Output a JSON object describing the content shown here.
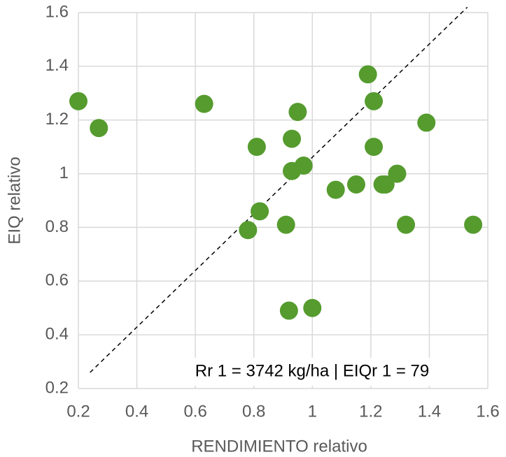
{
  "chart_data": {
    "type": "scatter",
    "x_label": "RENDIMIENTO relativo",
    "y_label": "EIQ relativo",
    "annotation": "Rr 1 = 3742 kg/ha | EIQr 1 = 79",
    "series": [
      {
        "color": "#559b2e",
        "x": [
          0.2,
          0.27,
          0.63,
          1.19,
          1.21,
          0.95,
          1.39,
          0.93,
          0.81,
          1.21,
          0.93,
          0.97,
          1.29,
          1.08,
          1.15,
          1.24,
          1.25,
          0.82,
          0.78,
          0.91,
          1.32,
          1.55,
          0.92,
          1.0
        ],
        "values": [
          1.27,
          1.17,
          1.26,
          1.37,
          1.27,
          1.23,
          1.19,
          1.13,
          1.1,
          1.1,
          1.01,
          1.03,
          1.0,
          0.94,
          0.96,
          0.96,
          0.96,
          0.86,
          0.79,
          0.81,
          0.81,
          0.81,
          0.49,
          0.5
        ]
      }
    ],
    "reference_line": {
      "x": [
        0.24,
        1.53
      ],
      "y": [
        0.26,
        1.62
      ]
    },
    "xlim": [
      0.2,
      1.6
    ],
    "xticks": [
      0.2,
      0.4,
      0.6,
      0.8,
      1,
      1.2,
      1.4,
      1.6
    ],
    "ylim": [
      0.2,
      1.6
    ],
    "yticks": [
      0.2,
      0.4,
      0.6,
      0.8,
      1,
      1.2,
      1.4,
      1.6
    ],
    "grid": true
  }
}
